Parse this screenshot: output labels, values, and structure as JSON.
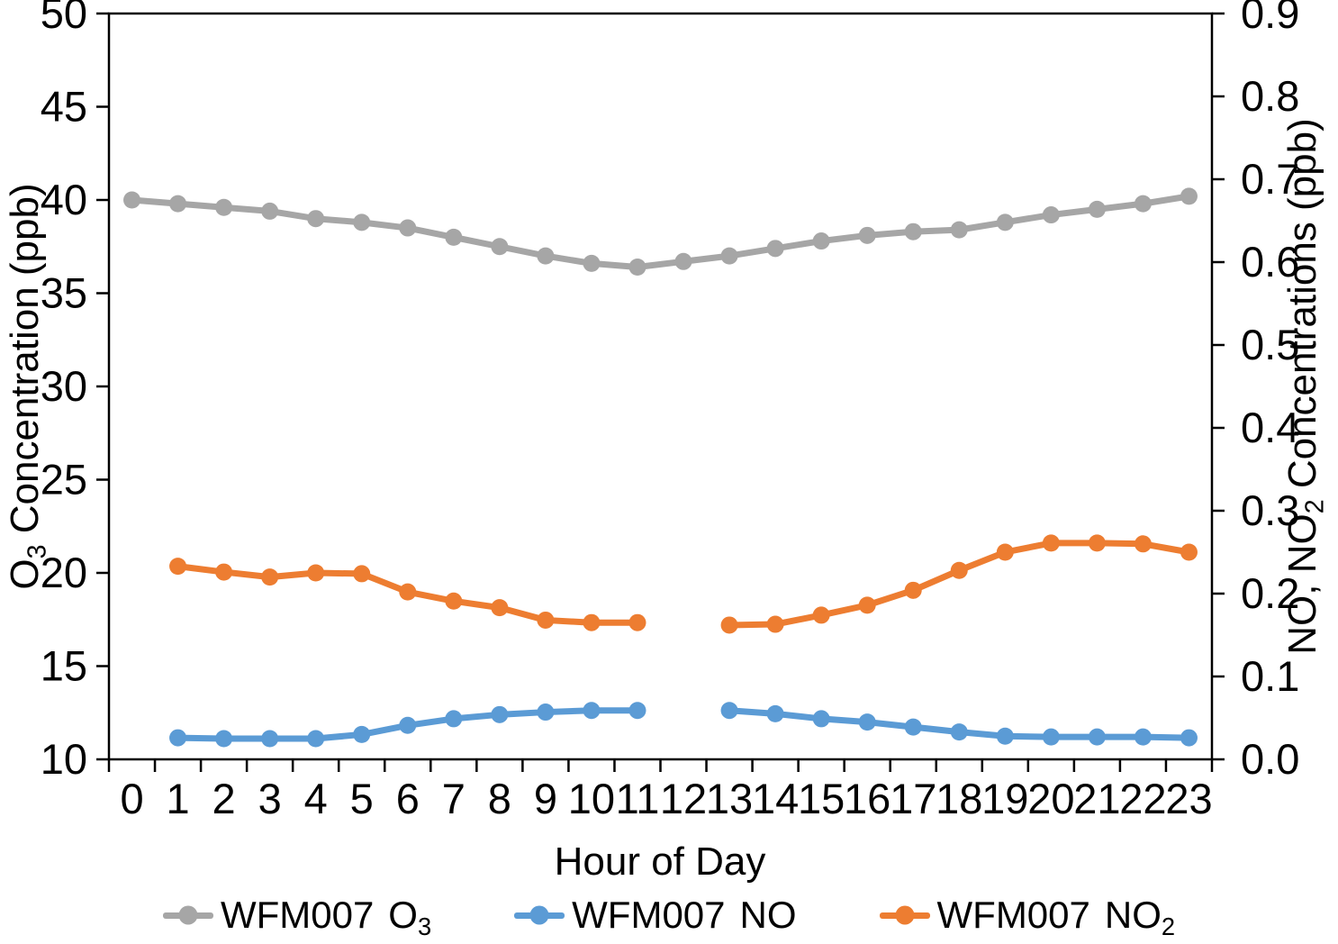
{
  "chart_data": {
    "type": "line",
    "title": "",
    "xlabel": "Hour of Day",
    "x_categories": [
      "0",
      "1",
      "2",
      "3",
      "4",
      "5",
      "6",
      "7",
      "8",
      "9",
      "10",
      "11",
      "12",
      "13",
      "14",
      "15",
      "16",
      "17",
      "18",
      "19",
      "20",
      "21",
      "22",
      "23"
    ],
    "left_axis": {
      "label_pre": "O",
      "label_sub": "3",
      "label_post": " Concentration (ppb)",
      "min": 10,
      "max": 50,
      "step": 5,
      "tick_labels": [
        "50",
        "45",
        "40",
        "35",
        "30",
        "25",
        "20",
        "15",
        "10"
      ]
    },
    "right_axis": {
      "label_pre": "NO, NO",
      "label_sub": "2",
      "label_post": " Concentrations (ppb)",
      "min": 0.0,
      "max": 0.9,
      "step": 0.1,
      "tick_labels": [
        "0.9",
        "0.8",
        "0.7",
        "0.6",
        "0.5",
        "0.4",
        "0.3",
        "0.2",
        "0.1",
        "0.0"
      ]
    },
    "grid": false,
    "legend_position": "bottom",
    "series": [
      {
        "name": "WFM007 O3",
        "axis": "left",
        "color": "#a6a6a6",
        "values": [
          40.0,
          39.8,
          39.6,
          39.4,
          39.0,
          38.8,
          38.5,
          38.0,
          37.5,
          37.0,
          36.6,
          36.4,
          36.7,
          37.0,
          37.4,
          37.8,
          38.1,
          38.3,
          38.4,
          38.8,
          39.2,
          39.5,
          39.8,
          40.2
        ]
      },
      {
        "name": "WFM007 NO",
        "axis": "right",
        "color": "#5b9bd5",
        "values": [
          null,
          0.026,
          0.025,
          0.025,
          0.025,
          0.03,
          0.041,
          0.049,
          0.054,
          0.057,
          0.059,
          0.059,
          null,
          0.059,
          0.055,
          0.049,
          0.045,
          0.039,
          0.033,
          0.028,
          0.027,
          0.027,
          0.027,
          0.026
        ]
      },
      {
        "name": "WFM007 NO2",
        "axis": "right",
        "color": "#ed7d31",
        "values": [
          null,
          0.233,
          0.226,
          0.22,
          0.225,
          0.224,
          0.202,
          0.191,
          0.183,
          0.168,
          0.165,
          0.165,
          null,
          0.162,
          0.163,
          0.174,
          0.186,
          0.204,
          0.228,
          0.25,
          0.261,
          0.261,
          0.26,
          0.25
        ]
      }
    ]
  },
  "legend": {
    "items": [
      {
        "station": "WFM007",
        "species": "O",
        "sub": "3"
      },
      {
        "station": "WFM007",
        "species": "NO",
        "sub": ""
      },
      {
        "station": "WFM007",
        "species": "NO",
        "sub": "2"
      }
    ]
  }
}
